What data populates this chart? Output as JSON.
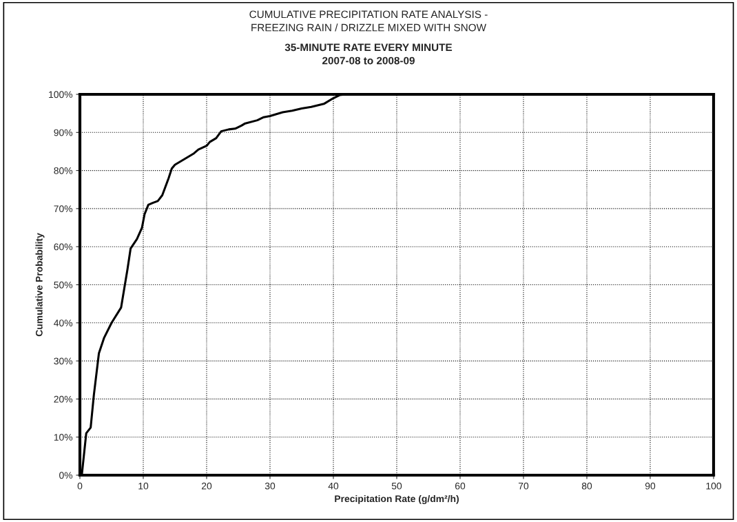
{
  "chart_data": {
    "type": "line",
    "title": "CUMULATIVE PRECIPITATION RATE ANALYSIS -\nFREEZING RAIN / DRIZZLE MIXED WITH SNOW",
    "subtitle": "35-MINUTE RATE EVERY MINUTE\n2007-08 to 2008-09",
    "xlabel": "Precipitation Rate (g/dm²/h)",
    "ylabel": "Cumulative Probability",
    "x": [
      0.3,
      1.0,
      1.7,
      2.2,
      3.0,
      3.8,
      5,
      6.5,
      7.0,
      7.5,
      8,
      9,
      9.8,
      10.2,
      10.8,
      11.5,
      12.3,
      13,
      14,
      14.5,
      15,
      16,
      17,
      18,
      18.7,
      20,
      20.5,
      21.5,
      22.3,
      23.5,
      24.5,
      25.5,
      26,
      28,
      29,
      30,
      31,
      32,
      33.5,
      35,
      36.5,
      38.5,
      40,
      41,
      42
    ],
    "series": [
      {
        "color": "#000000",
        "values": [
          0,
          11,
          12.5,
          21,
          32,
          36,
          40,
          44,
          49,
          54,
          59.5,
          62,
          65,
          68.5,
          71,
          71.5,
          72,
          73.5,
          78,
          80.5,
          81.5,
          82.5,
          83.5,
          84.5,
          85.5,
          86.5,
          87.5,
          88.5,
          90.3,
          90.8,
          91,
          91.8,
          92.3,
          93.2,
          94,
          94.3,
          94.8,
          95.3,
          95.7,
          96.3,
          96.7,
          97.5,
          99,
          99.8,
          100
        ]
      }
    ],
    "xlim": [
      0,
      100
    ],
    "xticks": [
      0,
      10,
      20,
      30,
      40,
      50,
      60,
      70,
      80,
      90,
      100
    ],
    "ylim": [
      0,
      100
    ],
    "yticks": [
      {
        "value": 0,
        "label": "0%"
      },
      {
        "value": 10,
        "label": "10%"
      },
      {
        "value": 20,
        "label": "20%"
      },
      {
        "value": 30,
        "label": "30%"
      },
      {
        "value": 40,
        "label": "40%"
      },
      {
        "value": 50,
        "label": "50%"
      },
      {
        "value": 60,
        "label": "60%"
      },
      {
        "value": 70,
        "label": "70%"
      },
      {
        "value": 80,
        "label": "80%"
      },
      {
        "value": 90,
        "label": "90%"
      },
      {
        "value": 100,
        "label": "100%"
      }
    ],
    "grid": true,
    "legend": false,
    "marker": "none",
    "line_style": "solid"
  }
}
